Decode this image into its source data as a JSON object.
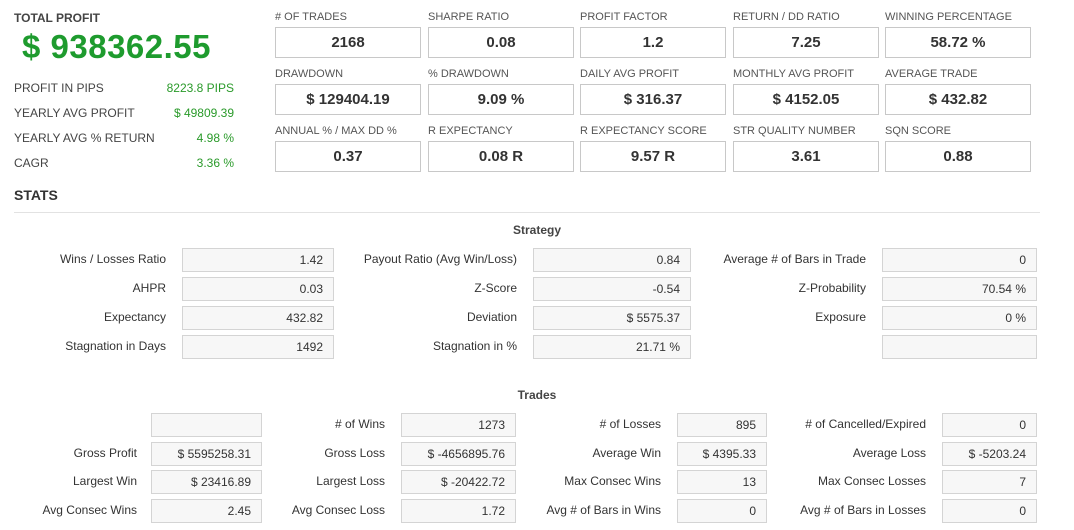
{
  "total_profit": {
    "label": "TOTAL PROFIT",
    "value": "$ 938362.55",
    "details": [
      {
        "label": "PROFIT IN PIPS",
        "value": "8223.8 PIPS"
      },
      {
        "label": "YEARLY AVG PROFIT",
        "value": "$ 49809.39"
      },
      {
        "label": "YEARLY AVG % RETURN",
        "value": "4.98 %"
      },
      {
        "label": "CAGR",
        "value": "3.36 %"
      }
    ],
    "accent_color": "#1e9b2e"
  },
  "metrics": [
    {
      "label": "# OF TRADES",
      "value": "2168"
    },
    {
      "label": "SHARPE RATIO",
      "value": "0.08"
    },
    {
      "label": "PROFIT FACTOR",
      "value": "1.2"
    },
    {
      "label": "RETURN / DD RATIO",
      "value": "7.25"
    },
    {
      "label": "WINNING PERCENTAGE",
      "value": "58.72 %"
    },
    {
      "label": "DRAWDOWN",
      "value": "$ 129404.19"
    },
    {
      "label": "% DRAWDOWN",
      "value": "9.09 %"
    },
    {
      "label": "DAILY AVG PROFIT",
      "value": "$ 316.37"
    },
    {
      "label": "MONTHLY AVG PROFIT",
      "value": "$ 4152.05"
    },
    {
      "label": "AVERAGE TRADE",
      "value": "$ 432.82"
    },
    {
      "label": "ANNUAL % / MAX DD %",
      "value": "0.37"
    },
    {
      "label": "R EXPECTANCY",
      "value": "0.08 R"
    },
    {
      "label": "R EXPECTANCY SCORE",
      "value": "9.57 R"
    },
    {
      "label": "STR QUALITY NUMBER",
      "value": "3.61"
    },
    {
      "label": "SQN SCORE",
      "value": "0.88"
    }
  ],
  "stats_title": "STATS",
  "strategy": {
    "title": "Strategy",
    "rows": [
      [
        {
          "label": "Wins / Losses Ratio",
          "value": "1.42"
        },
        {
          "label": "Payout Ratio (Avg Win/Loss)",
          "value": "0.84"
        },
        {
          "label": "Average # of Bars in Trade",
          "value": "0"
        }
      ],
      [
        {
          "label": "AHPR",
          "value": "0.03"
        },
        {
          "label": "Z-Score",
          "value": "-0.54"
        },
        {
          "label": "Z-Probability",
          "value": "70.54 %"
        }
      ],
      [
        {
          "label": "Expectancy",
          "value": "432.82"
        },
        {
          "label": "Deviation",
          "value": "$ 5575.37"
        },
        {
          "label": "Exposure",
          "value": "0 %"
        }
      ],
      [
        {
          "label": "Stagnation in Days",
          "value": "1492"
        },
        {
          "label": "Stagnation in %",
          "value": "21.71 %"
        },
        {
          "label": "",
          "value": ""
        }
      ]
    ]
  },
  "trades": {
    "title": "Trades",
    "rows": [
      [
        {
          "label": "",
          "value": ""
        },
        {
          "label": "# of Wins",
          "value": "1273"
        },
        {
          "label": "# of Losses",
          "value": "895"
        },
        {
          "label": "# of Cancelled/Expired",
          "value": "0"
        }
      ],
      [
        {
          "label": "Gross Profit",
          "value": "$ 5595258.31"
        },
        {
          "label": "Gross Loss",
          "value": "$ -4656895.76"
        },
        {
          "label": "Average Win",
          "value": "$ 4395.33"
        },
        {
          "label": "Average Loss",
          "value": "$ -5203.24"
        }
      ],
      [
        {
          "label": "Largest Win",
          "value": "$ 23416.89"
        },
        {
          "label": "Largest Loss",
          "value": "$ -20422.72"
        },
        {
          "label": "Max Consec Wins",
          "value": "13"
        },
        {
          "label": "Max Consec Losses",
          "value": "7"
        }
      ],
      [
        {
          "label": "Avg Consec Wins",
          "value": "2.45"
        },
        {
          "label": "Avg Consec Loss",
          "value": "1.72"
        },
        {
          "label": "Avg # of Bars in Wins",
          "value": "0"
        },
        {
          "label": "Avg # of Bars in Losses",
          "value": "0"
        }
      ]
    ]
  }
}
